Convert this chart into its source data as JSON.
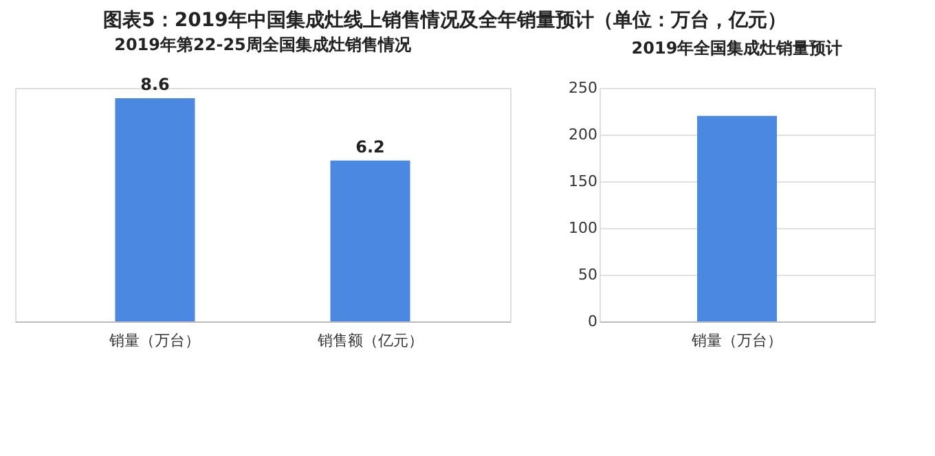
{
  "chart_data": [
    {
      "type": "bar",
      "title": "图表5：2019年中国集成灶线上销售情况及全年销量预计（单位：万台，亿元）",
      "subtitle": "2019年第22-25周全国集成灶销售情况",
      "categories": [
        "销量（万台）",
        "销售额（亿元）"
      ],
      "values": [
        8.6,
        6.2
      ],
      "color": "#4a88e2",
      "data_labels": true,
      "grid": false
    },
    {
      "type": "bar",
      "title": "2019年全国集成灶销量预计",
      "categories": [
        "销量（万台）"
      ],
      "values": [
        220
      ],
      "color": "#4a88e2",
      "ylim": [
        0,
        250
      ],
      "yticks": [
        0,
        50,
        100,
        150,
        200,
        250
      ],
      "grid": "y"
    }
  ]
}
